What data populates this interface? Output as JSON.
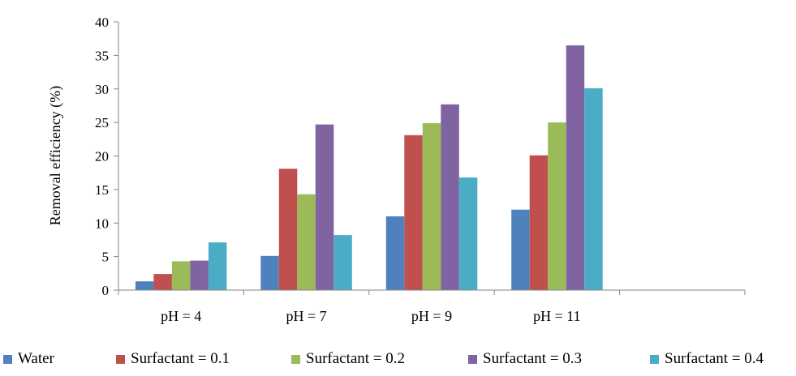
{
  "chart_data": {
    "type": "bar",
    "title": "",
    "xlabel": "",
    "ylabel": "Removal efficiency (%)",
    "ylim": [
      0,
      40
    ],
    "yticks": [
      0,
      5,
      10,
      15,
      20,
      25,
      30,
      35,
      40
    ],
    "grid": false,
    "legend_position": "bottom",
    "categories": [
      "pH = 4",
      "pH = 7",
      "pH = 9",
      "pH = 11",
      ""
    ],
    "series": [
      {
        "name": "Water",
        "color": "#4F81BD",
        "values": [
          1.3,
          5.1,
          11.0,
          12.0,
          null
        ]
      },
      {
        "name": "Surfactant = 0.1",
        "color": "#C0504D",
        "values": [
          2.4,
          18.1,
          23.1,
          20.1,
          null
        ]
      },
      {
        "name": "Surfactant = 0.2",
        "color": "#9BBB59",
        "values": [
          4.3,
          14.3,
          24.9,
          25.0,
          null
        ]
      },
      {
        "name": "Surfactant = 0.3",
        "color": "#8064A2",
        "values": [
          4.4,
          24.7,
          27.7,
          36.5,
          null
        ]
      },
      {
        "name": "Surfactant = 0.4",
        "color": "#4BACC6",
        "values": [
          7.1,
          8.2,
          16.8,
          30.1,
          null
        ]
      }
    ]
  }
}
